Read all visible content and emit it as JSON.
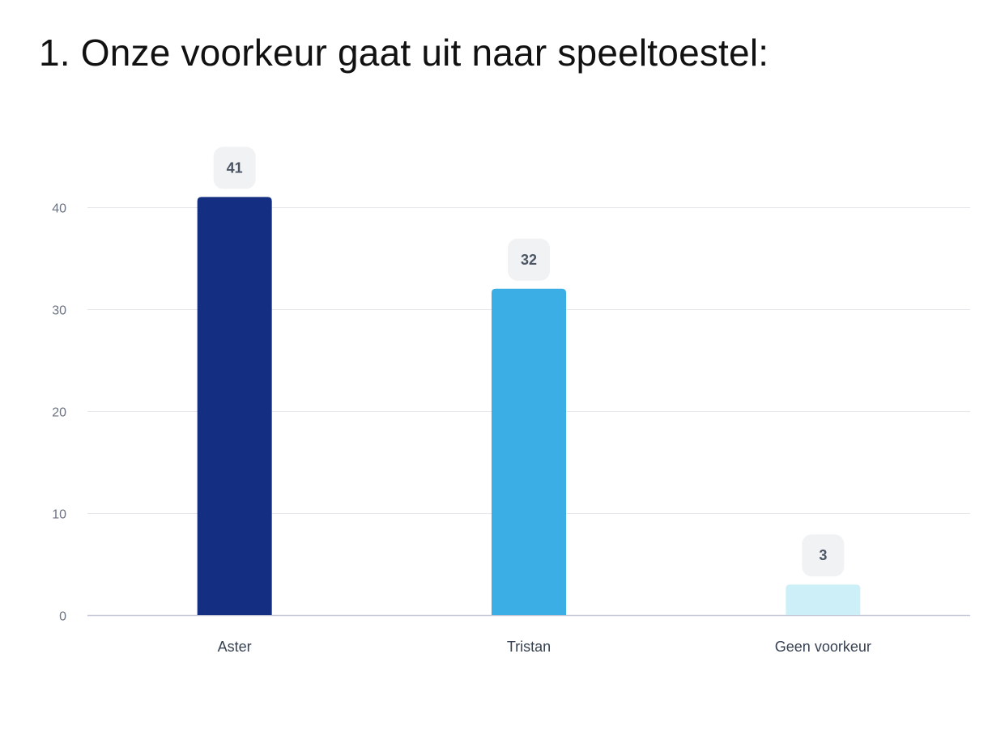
{
  "page": {
    "title": "1. Onze voorkeur gaat uit naar speeltoestel:"
  },
  "chart_data": {
    "type": "bar",
    "title": "1. Onze voorkeur gaat uit naar speeltoestel:",
    "xlabel": "",
    "ylabel": "",
    "categories": [
      "Aster",
      "Tristan",
      "Geen voorkeur"
    ],
    "values": [
      41,
      32,
      3
    ],
    "bar_colors": [
      "#142f82",
      "#3caee6",
      "#cdf0f8"
    ],
    "data_labels": [
      "41",
      "32",
      "3"
    ],
    "ylim": [
      0,
      40
    ],
    "yticks": [
      0,
      10,
      20,
      30,
      40
    ],
    "grid": true,
    "legend": "none",
    "colors": {
      "gridline": "#e5e7eb",
      "baseline": "#c7cad9",
      "label_badge": "#f1f2f4"
    }
  }
}
